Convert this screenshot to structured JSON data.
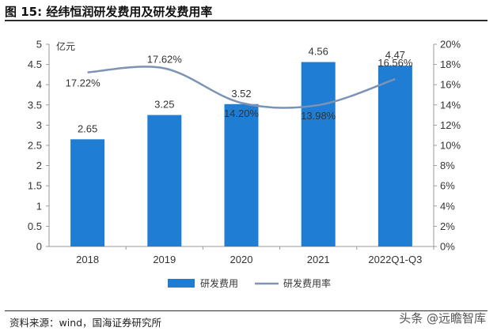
{
  "header": {
    "figure_label": "图 15:",
    "figure_title": "经纬恒润研发费用及研发费用率"
  },
  "chart_data": {
    "type": "bar",
    "categories": [
      "2018",
      "2019",
      "2020",
      "2021",
      "2022Q1-Q3"
    ],
    "series": [
      {
        "name": "研发费用",
        "type": "bar",
        "axis": "left",
        "values": [
          2.65,
          3.25,
          3.52,
          4.56,
          4.47
        ],
        "labels": [
          "2.65",
          "3.25",
          "3.52",
          "4.56",
          "4.47"
        ],
        "color": "#1f7ed4"
      },
      {
        "name": "研发费用率",
        "type": "line",
        "axis": "right",
        "values": [
          17.22,
          17.62,
          14.2,
          13.98,
          16.56
        ],
        "labels": [
          "17.22%",
          "17.62%",
          "14.20%",
          "13.98%",
          "16.56%"
        ],
        "color": "#7d93b5"
      }
    ],
    "ylabel": "亿元",
    "ylim": [
      0,
      5
    ],
    "y_ticks": [
      "0",
      "0.5",
      "1",
      "1.5",
      "2",
      "2.5",
      "3",
      "3.5",
      "4",
      "4.5",
      "5"
    ],
    "y2lim": [
      0,
      20
    ],
    "y2_ticks": [
      "0%",
      "2%",
      "4%",
      "6%",
      "8%",
      "10%",
      "12%",
      "14%",
      "16%",
      "18%",
      "20%"
    ],
    "grid": false,
    "legend_position": "bottom"
  },
  "footer": {
    "source": "资料来源：wind，国海证券研究所",
    "watermark": "头条 @远瞻智库"
  }
}
